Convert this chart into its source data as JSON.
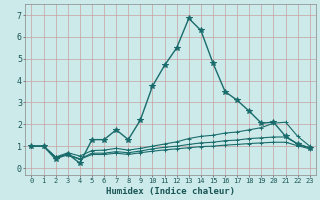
{
  "title": "",
  "xlabel": "Humidex (Indice chaleur)",
  "bg_color": "#cceaea",
  "grid_color": "#aad4d4",
  "line_color": "#1a6b6b",
  "xlim": [
    -0.5,
    23.5
  ],
  "ylim": [
    -0.3,
    7.5
  ],
  "xticks": [
    0,
    1,
    2,
    3,
    4,
    5,
    6,
    7,
    8,
    9,
    10,
    11,
    12,
    13,
    14,
    15,
    16,
    17,
    18,
    19,
    20,
    21,
    22,
    23
  ],
  "yticks": [
    0,
    1,
    2,
    3,
    4,
    5,
    6,
    7
  ],
  "series": [
    [
      1.0,
      1.0,
      0.4,
      0.65,
      0.22,
      1.3,
      1.3,
      1.75,
      1.3,
      2.2,
      3.75,
      4.7,
      5.5,
      6.85,
      6.3,
      4.8,
      3.5,
      3.1,
      2.6,
      2.05,
      2.1,
      1.45,
      1.1,
      0.92
    ],
    [
      1.0,
      1.0,
      0.5,
      0.7,
      0.55,
      0.8,
      0.82,
      0.9,
      0.82,
      0.9,
      1.0,
      1.1,
      1.2,
      1.35,
      1.45,
      1.5,
      1.6,
      1.65,
      1.75,
      1.85,
      2.05,
      2.1,
      1.45,
      1.0
    ],
    [
      1.0,
      1.0,
      0.5,
      0.62,
      0.42,
      0.68,
      0.68,
      0.75,
      0.7,
      0.78,
      0.88,
      0.95,
      1.0,
      1.08,
      1.15,
      1.18,
      1.25,
      1.28,
      1.35,
      1.38,
      1.42,
      1.42,
      1.1,
      0.92
    ],
    [
      1.0,
      1.0,
      0.5,
      0.58,
      0.4,
      0.62,
      0.62,
      0.68,
      0.62,
      0.7,
      0.77,
      0.83,
      0.88,
      0.93,
      0.98,
      1.0,
      1.05,
      1.08,
      1.12,
      1.15,
      1.18,
      1.18,
      1.02,
      0.88
    ]
  ],
  "markers": [
    "*",
    "+",
    "+",
    "+"
  ],
  "linewidths": [
    1.0,
    0.8,
    0.8,
    0.8
  ],
  "markersizes": [
    4,
    3,
    3,
    3
  ]
}
